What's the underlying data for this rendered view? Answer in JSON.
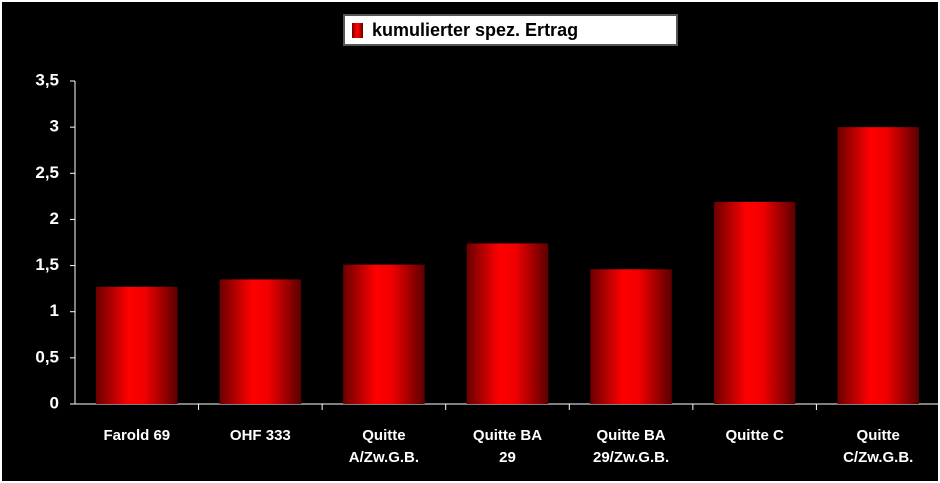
{
  "chart_data": {
    "type": "bar",
    "legend": "kumulierter spez. Ertrag",
    "categories": [
      "Farold 69",
      "OHF 333",
      "Quitte\nA/Zw.G.B.",
      "Quitte BA\n29",
      "Quitte BA\n29/Zw.G.B.",
      "Quitte C",
      "Quitte\nC/Zw.G.B."
    ],
    "values": [
      1.27,
      1.35,
      1.51,
      1.74,
      1.46,
      2.19,
      3.0
    ],
    "color": "#ff0000",
    "ylim": [
      0,
      3.5
    ],
    "yticks": [
      0,
      {
        "value": 0.5,
        "label": "0,5"
      },
      1,
      {
        "value": 1.5,
        "label": "1,5"
      },
      2,
      {
        "value": 2.5,
        "label": "2,5"
      },
      3,
      {
        "value": 3.5,
        "label": "3,5"
      }
    ],
    "grid": false
  }
}
